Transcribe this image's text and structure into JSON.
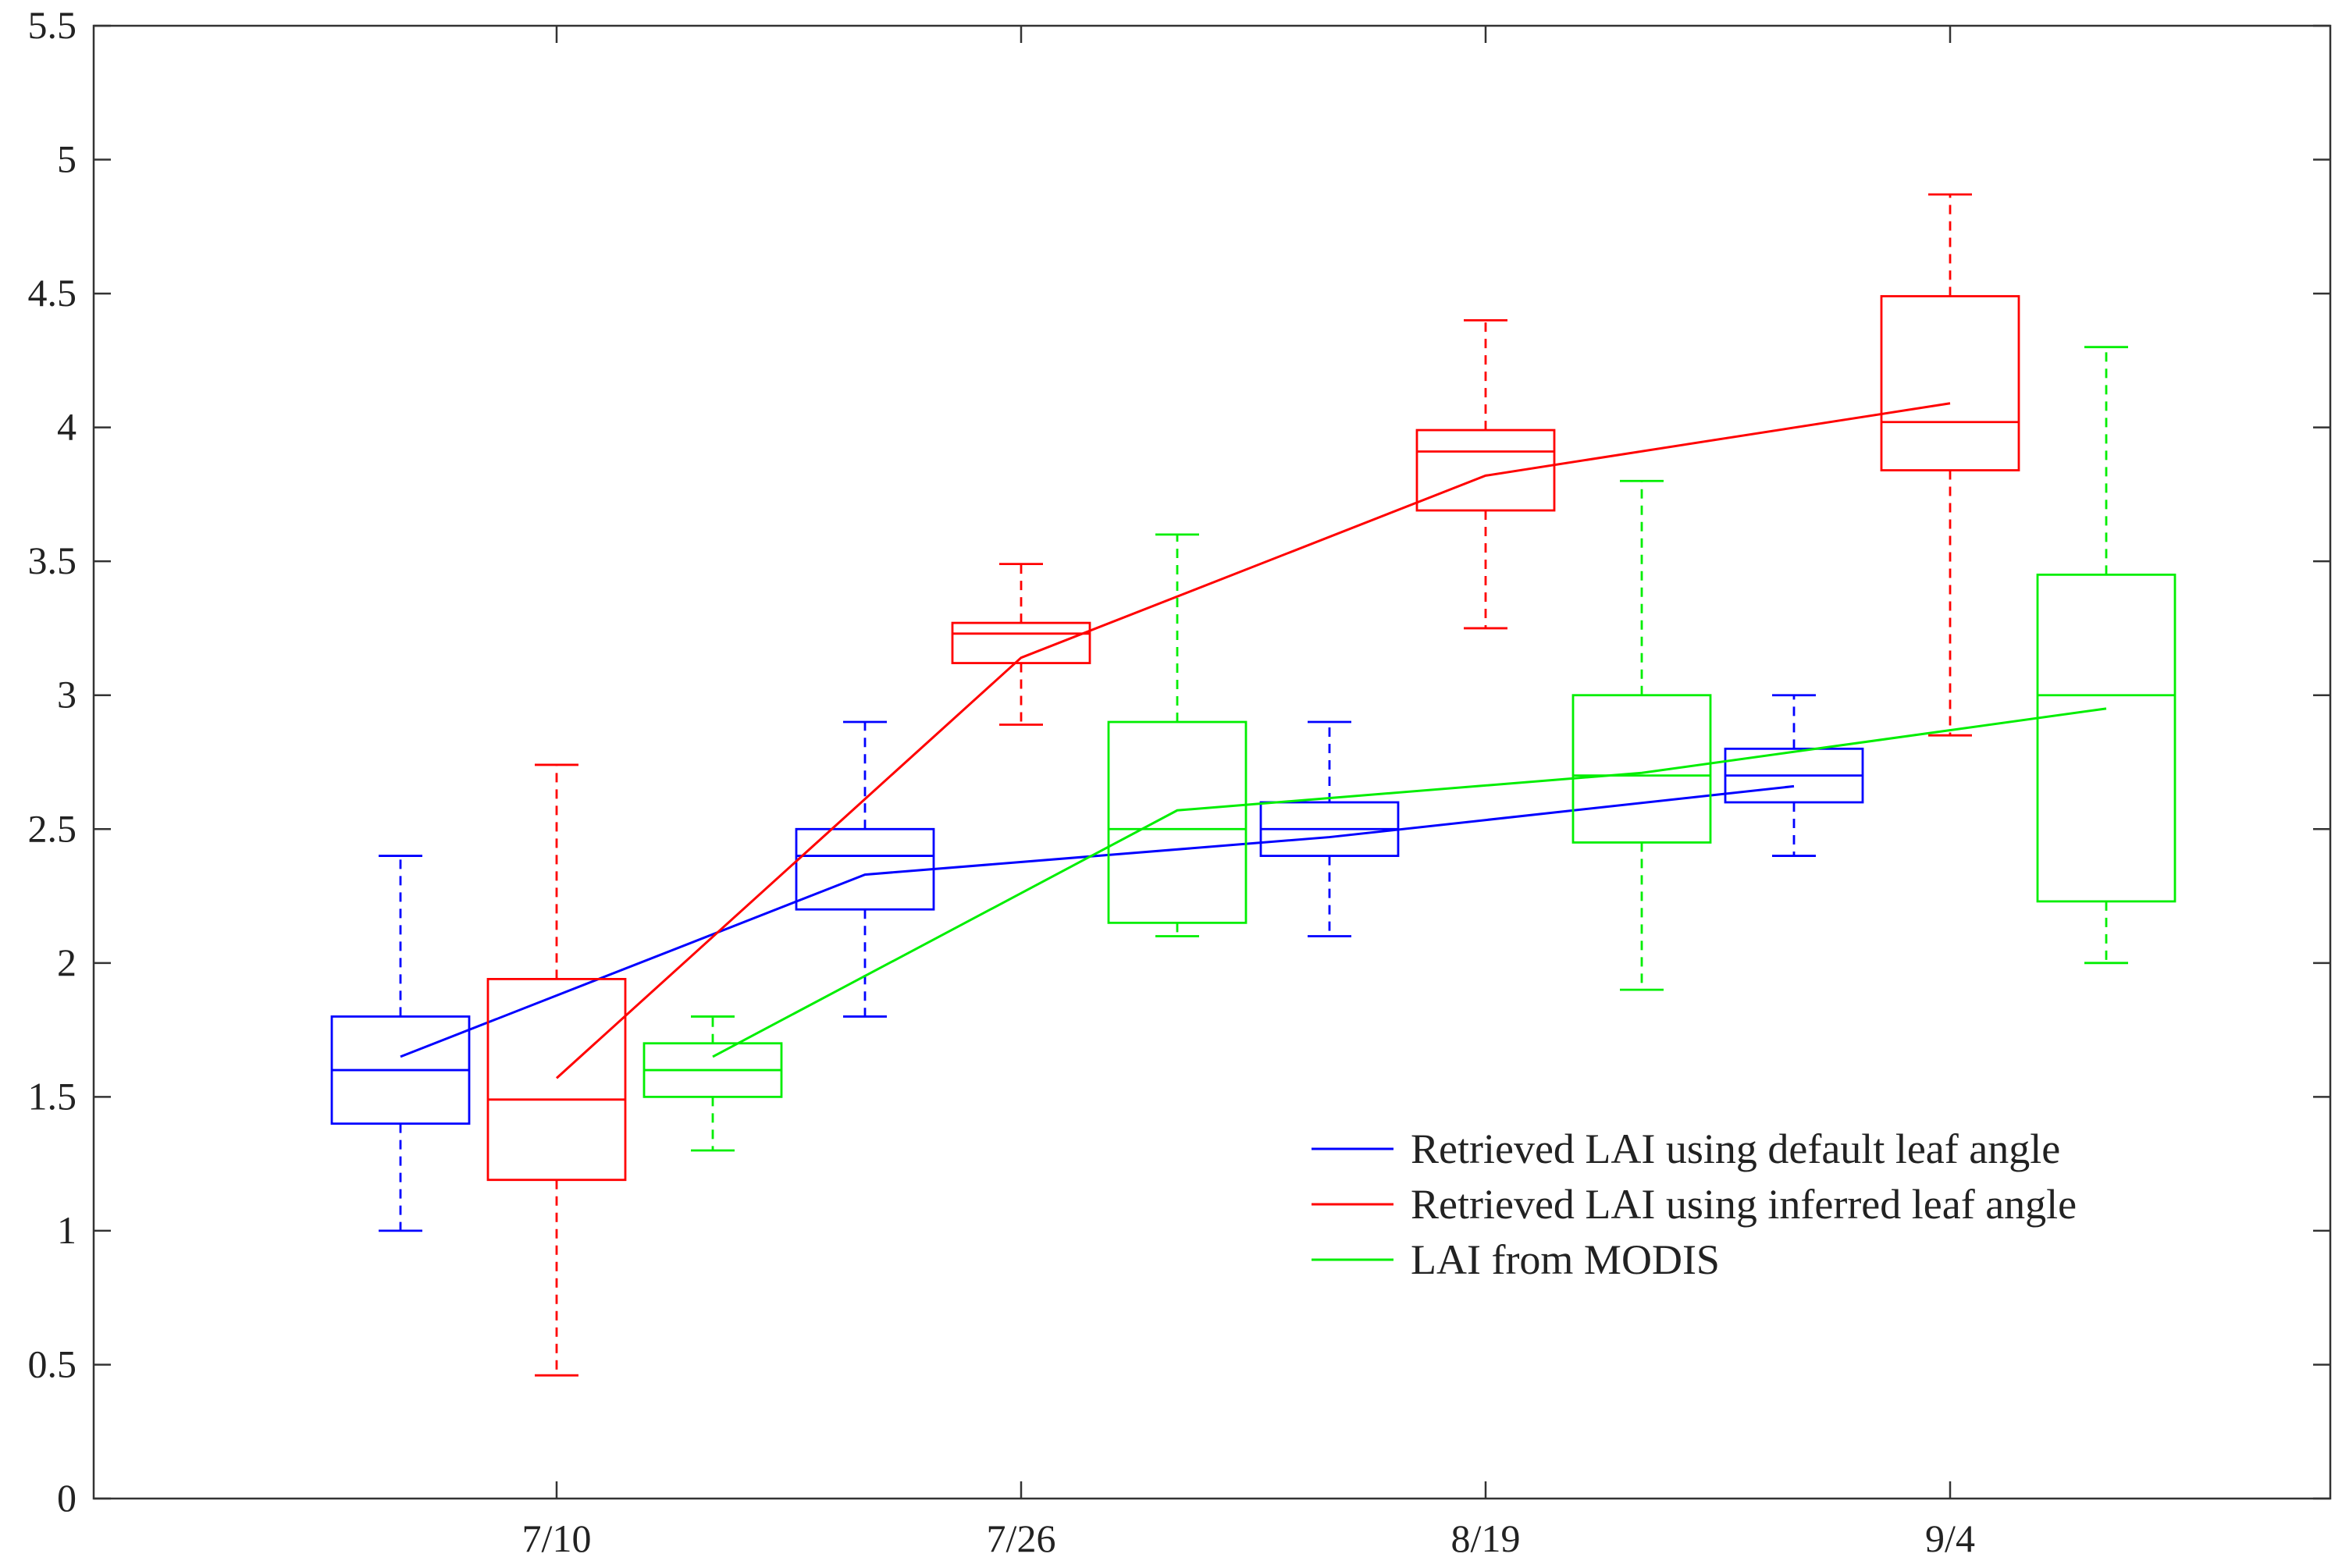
{
  "chart_data": {
    "type": "box",
    "title": "",
    "xlabel": "",
    "ylabel": "",
    "categories": [
      "7/10",
      "7/26",
      "8/19",
      "9/4"
    ],
    "ylim": [
      0,
      5.5
    ],
    "yticks": [
      "0",
      "0.5",
      "1",
      "1.5",
      "2",
      "2.5",
      "3",
      "3.5",
      "4",
      "4.5",
      "5",
      "5.5"
    ],
    "grid": false,
    "legend_position": "bottom-right",
    "series": [
      {
        "name": "Retrieved LAI using default leaf angle",
        "color": "#0000ff",
        "offset": -1,
        "boxes": [
          {
            "min": 1.0,
            "q1": 1.4,
            "median": 1.6,
            "q3": 1.8,
            "max": 2.4
          },
          {
            "min": 1.8,
            "q1": 2.2,
            "median": 2.4,
            "q3": 2.5,
            "max": 2.9
          },
          {
            "min": 2.1,
            "q1": 2.4,
            "median": 2.5,
            "q3": 2.6,
            "max": 2.9
          },
          {
            "min": 2.4,
            "q1": 2.6,
            "median": 2.7,
            "q3": 2.8,
            "max": 3.0
          }
        ],
        "means": [
          1.65,
          2.33,
          2.47,
          2.66
        ]
      },
      {
        "name": "Retrieved LAI using inferred leaf angle",
        "color": "#ff0000",
        "offset": 0,
        "boxes": [
          {
            "min": 0.46,
            "q1": 1.19,
            "median": 1.49,
            "q3": 1.94,
            "max": 2.74
          },
          {
            "min": 2.89,
            "q1": 3.12,
            "median": 3.23,
            "q3": 3.27,
            "max": 3.49
          },
          {
            "min": 3.25,
            "q1": 3.69,
            "median": 3.91,
            "q3": 3.99,
            "max": 4.4
          },
          {
            "min": 2.85,
            "q1": 3.84,
            "median": 4.02,
            "q3": 4.49,
            "max": 4.87
          }
        ],
        "means": [
          1.57,
          3.14,
          3.82,
          4.09
        ]
      },
      {
        "name": "LAI from MODIS",
        "color": "#00ee00",
        "offset": 1,
        "boxes": [
          {
            "min": 1.3,
            "q1": 1.5,
            "median": 1.6,
            "q3": 1.7,
            "max": 1.8
          },
          {
            "min": 2.1,
            "q1": 2.15,
            "median": 2.5,
            "q3": 2.9,
            "max": 3.6
          },
          {
            "min": 1.9,
            "q1": 2.45,
            "median": 2.7,
            "q3": 3.0,
            "max": 3.8
          },
          {
            "min": 2.0,
            "q1": 2.23,
            "median": 3.0,
            "q3": 3.45,
            "max": 4.3
          }
        ],
        "means": [
          1.65,
          2.57,
          2.71,
          2.95
        ]
      }
    ]
  }
}
